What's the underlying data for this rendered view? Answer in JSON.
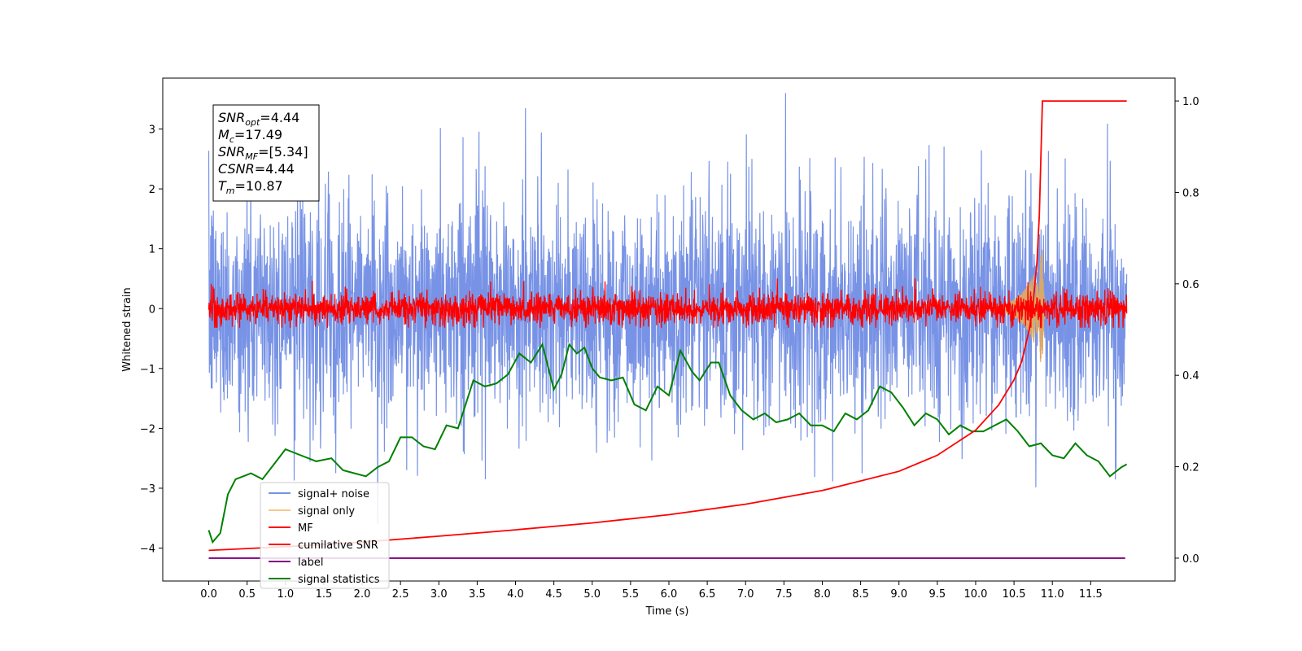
{
  "chart_data": {
    "type": "line",
    "xlabel": "Time (s)",
    "ylabel": "Whitened strain",
    "xlim": [
      -0.6,
      12.6
    ],
    "ylim": [
      -4.55,
      3.85
    ],
    "y2lim": [
      -0.05,
      1.05
    ],
    "x_ticks": [
      "0.0",
      "0.5",
      "1.0",
      "1.5",
      "2.0",
      "2.5",
      "3.0",
      "3.5",
      "4.0",
      "4.5",
      "5.0",
      "5.5",
      "6.0",
      "6.5",
      "7.0",
      "7.5",
      "8.0",
      "8.5",
      "9.0",
      "9.5",
      "10.0",
      "10.5",
      "11.0",
      "11.5"
    ],
    "y_ticks": [
      "3",
      "2",
      "1",
      "0",
      "−1",
      "−2",
      "−3",
      "−4"
    ],
    "y2_ticks": [
      "1.0",
      "0.8",
      "0.6",
      "0.4",
      "0.2",
      "0.0"
    ],
    "grid": false,
    "legend_position": "lower-left",
    "annotation": [
      {
        "main": "SNR",
        "sub": "opt",
        "value": "=4.44"
      },
      {
        "main": "M",
        "sub": "c",
        "value": "=17.49"
      },
      {
        "main": "SNR",
        "sub": "MF",
        "value": "=[5.34]"
      },
      {
        "main": "CSNR",
        "sub": "",
        "value": "=4.44"
      },
      {
        "main": "T",
        "sub": "m",
        "value": "=10.87"
      }
    ],
    "series": [
      {
        "name": "signal+ noise",
        "color": "#7893e6",
        "axis": "left",
        "kind": "noise",
        "mean": 0.0,
        "approx_range": [
          -4.1,
          3.6
        ]
      },
      {
        "name": "signal only",
        "color": "#f5c98a",
        "axis": "left",
        "kind": "chirp",
        "peak_time": 10.87,
        "peak_amplitude": 1.0
      },
      {
        "name": "MF",
        "color": "#ff0000",
        "axis": "left",
        "kind": "noise",
        "mean": 0.0,
        "approx_range": [
          -0.3,
          1.0
        ]
      },
      {
        "name": "cumilative SNR",
        "color": "#ff0000",
        "axis": "right",
        "x": [
          0.0,
          1.0,
          2.0,
          3.0,
          4.0,
          5.0,
          6.0,
          7.0,
          8.0,
          9.0,
          9.5,
          10.0,
          10.3,
          10.5,
          10.6,
          10.7,
          10.75,
          10.8,
          10.83,
          10.87,
          11.97
        ],
        "y": [
          0.017,
          0.025,
          0.035,
          0.048,
          0.062,
          0.077,
          0.095,
          0.118,
          0.148,
          0.19,
          0.225,
          0.28,
          0.335,
          0.39,
          0.43,
          0.5,
          0.56,
          0.65,
          0.75,
          1.0,
          1.0
        ]
      },
      {
        "name": "label",
        "color": "#800080",
        "axis": "right",
        "x": [
          0.0,
          11.95
        ],
        "y": [
          0.0,
          0.0
        ]
      },
      {
        "name": "signal statistics",
        "color": "#008000",
        "axis": "left",
        "x": [
          0.0,
          0.05,
          0.15,
          0.25,
          0.35,
          0.45,
          0.55,
          0.7,
          0.85,
          1.0,
          1.2,
          1.4,
          1.6,
          1.75,
          1.9,
          2.05,
          2.2,
          2.35,
          2.5,
          2.65,
          2.8,
          2.95,
          3.1,
          3.25,
          3.45,
          3.6,
          3.75,
          3.9,
          4.05,
          4.2,
          4.35,
          4.5,
          4.6,
          4.7,
          4.8,
          4.9,
          5.0,
          5.1,
          5.25,
          5.4,
          5.55,
          5.7,
          5.85,
          6.0,
          6.15,
          6.3,
          6.4,
          6.55,
          6.65,
          6.8,
          6.95,
          7.1,
          7.25,
          7.4,
          7.55,
          7.7,
          7.85,
          8.0,
          8.15,
          8.3,
          8.45,
          8.6,
          8.75,
          8.9,
          9.05,
          9.2,
          9.35,
          9.5,
          9.65,
          9.8,
          9.95,
          10.1,
          10.25,
          10.4,
          10.55,
          10.7,
          10.85,
          11.0,
          11.15,
          11.3,
          11.45,
          11.6,
          11.75,
          11.9,
          11.97
        ],
        "y": [
          -3.7,
          -3.9,
          -3.75,
          -3.1,
          -2.85,
          -2.8,
          -2.75,
          -2.85,
          -2.6,
          -2.35,
          -2.45,
          -2.55,
          -2.5,
          -2.7,
          -2.75,
          -2.8,
          -2.65,
          -2.55,
          -2.15,
          -2.15,
          -2.3,
          -2.35,
          -1.95,
          -2.0,
          -1.2,
          -1.3,
          -1.25,
          -1.1,
          -0.75,
          -0.9,
          -0.6,
          -1.35,
          -1.1,
          -0.6,
          -0.75,
          -0.65,
          -1.0,
          -1.15,
          -1.2,
          -1.15,
          -1.6,
          -1.7,
          -1.3,
          -1.45,
          -0.7,
          -1.05,
          -1.2,
          -0.9,
          -0.9,
          -1.45,
          -1.7,
          -1.85,
          -1.75,
          -1.9,
          -1.85,
          -1.75,
          -1.95,
          -1.95,
          -2.05,
          -1.75,
          -1.85,
          -1.7,
          -1.3,
          -1.4,
          -1.65,
          -1.95,
          -1.75,
          -1.85,
          -2.1,
          -1.95,
          -2.05,
          -2.05,
          -1.95,
          -1.85,
          -2.05,
          -2.3,
          -2.25,
          -2.45,
          -2.5,
          -2.25,
          -2.45,
          -2.55,
          -2.8,
          -2.65,
          -2.6
        ]
      }
    ]
  }
}
